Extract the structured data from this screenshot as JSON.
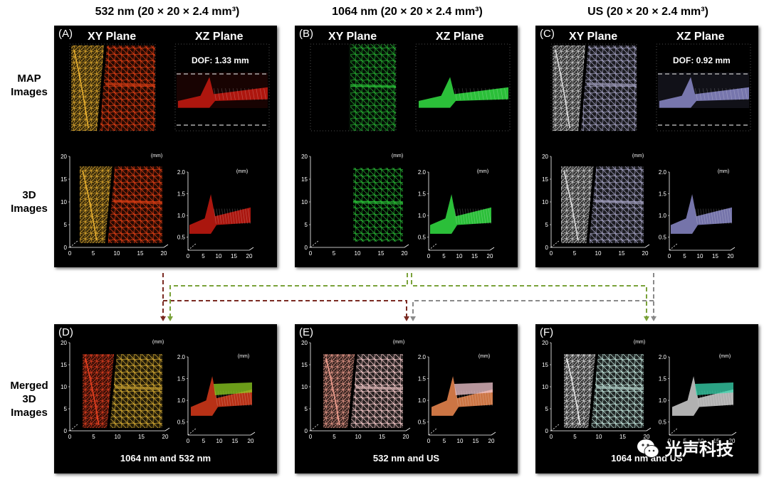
{
  "column_headers": [
    "532 nm (20 × 20 × 2.4 mm³)",
    "1064 nm (20 × 20 × 2.4 mm³)",
    "US (20 × 20 × 2.4 mm³)"
  ],
  "row_labels": {
    "map": "MAP\nImages",
    "three_d": "3D\nImages",
    "merged": "Merged\n3D\nImages"
  },
  "panels": {
    "a": {
      "label": "(A)",
      "xy_title": "XY Plane",
      "xz_title": "XZ Plane",
      "dof": "DOF: 1.33 mm",
      "color": "#d81e14"
    },
    "b": {
      "label": "(B)",
      "xy_title": "XY  Plane",
      "xz_title": "XZ Plane",
      "color": "#2bc93a"
    },
    "c": {
      "label": "(C)",
      "xy_title": "XY Plane",
      "xz_title": "XZ Plane",
      "dof": "DOF: 0.92 mm",
      "color": "#8a88c8"
    },
    "d": {
      "label": "(D)",
      "caption": "1064 nm and 532 nm"
    },
    "e": {
      "label": "(E)",
      "caption": "532 nm and US"
    },
    "f": {
      "label": "(F)",
      "caption": "1064 nm and US"
    }
  },
  "axis": {
    "unit": "(mm)",
    "xy_y_ticks": [
      "20",
      "15",
      "10",
      "5",
      "0"
    ],
    "xy_x_ticks": [
      "0",
      "5",
      "10",
      "15",
      "20"
    ],
    "xz_y_ticks": [
      "2.0",
      "1.5",
      "1.0",
      "0.5"
    ],
    "xz_x_ticks": [
      "0",
      "5",
      "10",
      "15",
      "20"
    ]
  },
  "arrow_colors": {
    "red": "#7a2a22",
    "green": "#7aa23a",
    "gray": "#8a8a8a"
  },
  "watermark": "光声科技"
}
